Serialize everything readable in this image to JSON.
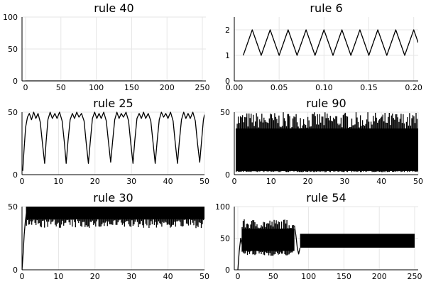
{
  "chart_data": [
    {
      "type": "line",
      "title": "rule 40",
      "xlabel": "",
      "ylabel": "",
      "xlim": [
        -5,
        255
      ],
      "ylim": [
        0,
        100
      ],
      "xticks": [
        0,
        50,
        100,
        150,
        200,
        250
      ],
      "yticks": [
        0,
        50,
        100
      ],
      "grid": true,
      "series": [
        {
          "x": [
            0,
            250
          ],
          "y": [
            0,
            0
          ]
        }
      ]
    },
    {
      "type": "line",
      "title": "rule 6",
      "xlabel": "",
      "ylabel": "",
      "xlim": [
        0,
        0.205
      ],
      "ylim": [
        0,
        2.5
      ],
      "xticks": [
        0.0,
        0.05,
        0.1,
        0.15,
        0.2
      ],
      "xtick_labels": [
        "0.00",
        "0.05",
        "0.10",
        "0.15",
        "0.20"
      ],
      "yticks": [
        0,
        1,
        2
      ],
      "grid": true,
      "series": [
        {
          "x": [
            0.01,
            0.02,
            0.03,
            0.04,
            0.05,
            0.06,
            0.07,
            0.08,
            0.09,
            0.1,
            0.11,
            0.12,
            0.13,
            0.14,
            0.15,
            0.16,
            0.17,
            0.18,
            0.19,
            0.2,
            0.205
          ],
          "y": [
            1,
            2,
            1,
            2,
            1,
            2,
            1,
            2,
            1,
            2,
            1,
            2,
            1,
            2,
            1,
            2,
            1,
            2,
            1,
            2,
            1.5
          ]
        }
      ]
    },
    {
      "type": "line",
      "title": "rule 25",
      "xlabel": "",
      "ylabel": "",
      "xlim": [
        0,
        50
      ],
      "ylim": [
        0,
        50
      ],
      "xticks": [
        0,
        10,
        20,
        30,
        40,
        50
      ],
      "yticks": [
        0,
        50
      ],
      "grid": true,
      "series": [
        {
          "x": [
            0.2,
            0.6,
            1.0,
            1.5,
            2.0,
            2.6,
            3.2,
            3.8,
            4.4,
            5.0,
            5.6,
            6.2,
            6.6,
            7.1,
            7.7,
            8.3,
            9.0,
            9.6,
            10.3,
            11.0,
            11.6,
            12.1,
            12.6,
            13.2,
            13.8,
            14.4,
            15.0,
            15.6,
            16.3,
            17.0,
            17.6,
            18.2,
            18.7,
            19.3,
            19.9,
            20.5,
            21.1,
            21.7,
            22.4,
            23.1,
            23.7,
            24.3,
            24.8,
            25.4,
            26.0,
            26.6,
            27.2,
            27.8,
            28.5,
            29.2,
            29.8,
            30.4,
            30.9,
            31.5,
            32.1,
            32.7,
            33.3,
            33.9,
            34.6,
            35.3,
            35.9,
            36.5,
            37.0,
            37.6,
            38.2,
            38.8,
            39.4,
            40.0,
            40.7,
            41.4,
            42.0,
            42.6,
            43.1,
            43.7,
            44.3,
            44.9,
            45.5,
            46.1,
            46.8,
            47.5,
            48.1,
            48.7,
            49.2,
            49.7,
            50.0
          ],
          "y": [
            3,
            22,
            38,
            46,
            49,
            44,
            50,
            45,
            49,
            42,
            25,
            9,
            26,
            44,
            50,
            45,
            49,
            45,
            50,
            43,
            26,
            9,
            27,
            44,
            49,
            45,
            50,
            46,
            49,
            43,
            25,
            9,
            26,
            45,
            50,
            45,
            49,
            45,
            50,
            43,
            26,
            10,
            26,
            44,
            50,
            45,
            49,
            46,
            50,
            43,
            25,
            9,
            27,
            45,
            49,
            45,
            50,
            45,
            49,
            43,
            26,
            9,
            26,
            44,
            50,
            46,
            49,
            45,
            50,
            43,
            25,
            9,
            26,
            44,
            50,
            45,
            49,
            45,
            50,
            43,
            25,
            10,
            27,
            44,
            48
          ]
        }
      ]
    },
    {
      "type": "line",
      "title": "rule 90",
      "xlabel": "",
      "ylabel": "",
      "xlim": [
        0,
        50
      ],
      "ylim": [
        0,
        50
      ],
      "xticks": [
        0,
        10,
        20,
        30,
        40,
        50
      ],
      "yticks": [
        0,
        50
      ],
      "grid": true,
      "band": {
        "x": [
          0.5,
          50
        ],
        "low": 3,
        "high": 37,
        "spike_max": 50,
        "dip_min": 2
      }
    },
    {
      "type": "line",
      "title": "rule 30",
      "xlabel": "",
      "ylabel": "",
      "xlim": [
        0,
        50
      ],
      "ylim": [
        0,
        50
      ],
      "xticks": [
        0,
        10,
        20,
        30,
        40,
        50
      ],
      "yticks": [
        0,
        50
      ],
      "grid": true,
      "series": [
        {
          "x": [
            0,
            0.3,
            0.6,
            0.9,
            1.2
          ],
          "y": [
            0,
            12,
            28,
            38,
            45
          ]
        }
      ],
      "band": {
        "x": [
          1.2,
          50
        ],
        "low": 40,
        "high": 50,
        "spike_max": 50,
        "dip_min": 33
      }
    },
    {
      "type": "line",
      "title": "rule 54",
      "xlabel": "",
      "ylabel": "",
      "xlim": [
        -5,
        255
      ],
      "ylim": [
        0,
        100
      ],
      "xticks": [
        0,
        50,
        100,
        150,
        200,
        250
      ],
      "yticks": [
        0,
        50,
        100
      ],
      "grid": true,
      "series": [
        {
          "x": [
            0,
            2,
            4,
            6
          ],
          "y": [
            0,
            30,
            50,
            40
          ]
        }
      ],
      "band": {
        "x": [
          6,
          80
        ],
        "low": 30,
        "high": 65,
        "spike_max": 80,
        "dip_min": 22
      },
      "transition": {
        "x": [
          80,
          82,
          84,
          86,
          88
        ],
        "y": [
          70,
          55,
          35,
          25,
          35
        ]
      },
      "band2": {
        "x": [
          88,
          250
        ],
        "low": 35,
        "high": 57
      }
    }
  ]
}
